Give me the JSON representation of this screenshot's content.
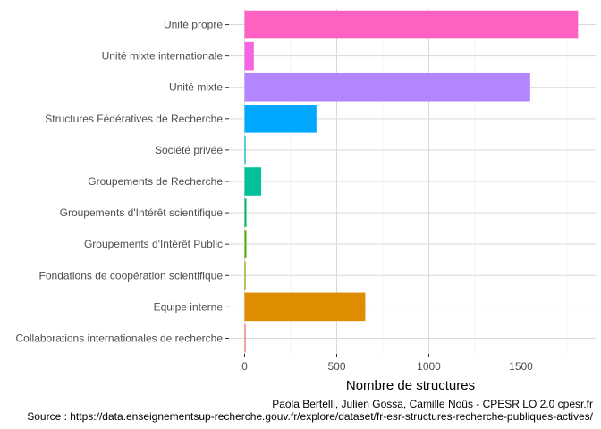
{
  "chart_data": {
    "type": "bar",
    "orientation": "horizontal",
    "categories": [
      "Unité propre",
      "Unité mixte internationale",
      "Unité mixte",
      "Structures Fédératives de Recherche",
      "Société privée",
      "Groupements de Recherche",
      "Groupements d'Intérêt scientifique",
      "Groupements d'Intérêt Public",
      "Fondations de coopération scientifique",
      "Equipe interne",
      "Collaborations internationales de recherche"
    ],
    "values": [
      1810,
      50,
      1550,
      390,
      5,
      90,
      10,
      10,
      5,
      655,
      5
    ],
    "colors": [
      "#ff61c3",
      "#f564e3",
      "#b385ff",
      "#00a9ff",
      "#00bfc4",
      "#00c19a",
      "#00be67",
      "#53b400",
      "#a3a500",
      "#de8c00",
      "#f8766d"
    ],
    "xlabel": "Nombre de structures",
    "ylabel": "",
    "xlim": [
      0,
      1900
    ],
    "xticks": [
      0,
      500,
      1000,
      1500
    ],
    "grid": true,
    "legend": "none",
    "caption_lines": [
      "Paola Bertelli, Julien Gossa, Camille Noûs - CPESR LO 2.0 cpesr.fr",
      "Source : https://data.enseignementsup-recherche.gouv.fr/explore/dataset/fr-esr-structures-recherche-publiques-actives/"
    ]
  }
}
